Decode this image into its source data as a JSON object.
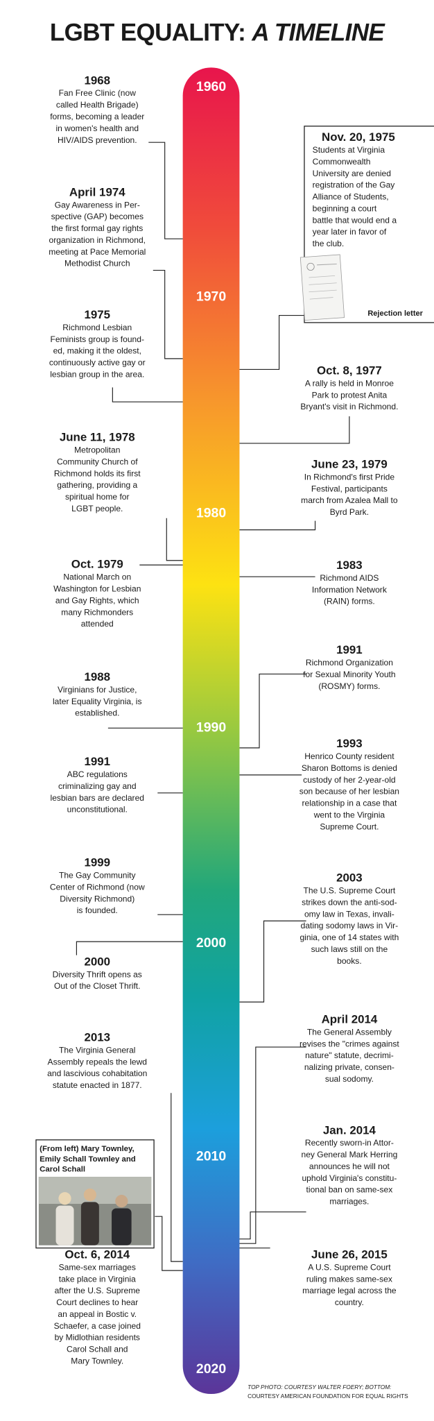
{
  "title": {
    "main": "LGBT EQUALITY:",
    "italic": "A TIMELINE"
  },
  "decades": [
    "1960",
    "1970",
    "1980",
    "1990",
    "2000",
    "2010",
    "2020"
  ],
  "left_events": [
    {
      "date": "1968",
      "lines": [
        "Fan Free Clinic (now",
        "called Health Brigade)",
        "forms, becoming a leader",
        "in women's health and",
        "HIV/AIDS prevention."
      ]
    },
    {
      "date": "April 1974",
      "lines": [
        "Gay Awareness in Per-",
        "spective (GAP) becomes",
        "the first formal gay rights",
        "organization in Richmond,",
        "meeting at Pace Memorial",
        "Methodist Church"
      ]
    },
    {
      "date": "1975",
      "lines": [
        "Richmond Lesbian",
        "Feminists group is found-",
        "ed, making it the oldest,",
        "continuously active gay or",
        "lesbian group in the area."
      ]
    },
    {
      "date": "June 11, 1978",
      "lines": [
        "Metropolitan",
        "Community Church of",
        "Richmond holds its first",
        "gathering, providing a",
        "spiritual home for",
        "LGBT people."
      ]
    },
    {
      "date": "Oct. 1979",
      "lines": [
        "National March on",
        "Washington for Lesbian",
        "and Gay Rights, which",
        "many Richmonders",
        "attended"
      ]
    },
    {
      "date": "1988",
      "lines": [
        "Virginians for Justice,",
        "later Equality Virginia, is",
        "established."
      ]
    },
    {
      "date": "1991",
      "lines": [
        "ABC regulations",
        "criminalizing gay and",
        "lesbian bars are declared",
        "unconstitutional."
      ]
    },
    {
      "date": "1999",
      "lines": [
        "The Gay Community",
        "Center of Richmond (now",
        "Diversity Richmond)",
        "is founded."
      ]
    },
    {
      "date": "2000",
      "lines": [
        "Diversity Thrift opens as",
        "Out of the Closet Thrift."
      ]
    },
    {
      "date": "2013",
      "lines": [
        "The Virginia General",
        "Assembly repeals the lewd",
        "and lascivious cohabitation",
        "statute enacted in 1877."
      ]
    },
    {
      "date": "Oct. 6, 2014",
      "lines": [
        "Same-sex marriages",
        "take place in Virginia",
        "after the U.S. Supreme",
        "Court declines to hear",
        "an appeal in Bostic v.",
        "Schaefer, a case joined",
        "by Midlothian residents",
        "Carol Schall and",
        "Mary Townley."
      ]
    }
  ],
  "right_events": [
    {
      "date": "Nov. 20, 1975",
      "lines": [
        "Students at Virginia",
        "Commonwealth",
        "University are denied",
        "registration of the Gay",
        "Alliance of Students,",
        "beginning a court",
        "battle that would end a",
        "year later in favor of",
        "the club."
      ]
    },
    {
      "date": "Oct. 8, 1977",
      "lines": [
        "A rally is held in Monroe",
        "Park to protest Anita",
        "Bryant's visit in Richmond."
      ]
    },
    {
      "date": "June 23, 1979",
      "lines": [
        "In Richmond's first Pride",
        "Festival, participants",
        "march from Azalea Mall to",
        "Byrd Park."
      ]
    },
    {
      "date": "1983",
      "lines": [
        "Richmond AIDS",
        "Information Network",
        "(RAIN) forms."
      ]
    },
    {
      "date": "1991",
      "lines": [
        "Richmond Organization",
        "for Sexual Minority Youth",
        "(ROSMY) forms."
      ]
    },
    {
      "date": "1993",
      "lines": [
        "Henrico County resident",
        "Sharon Bottoms is denied",
        "custody of her 2-year-old",
        "son because of her lesbian",
        "relationship in a case that",
        "went to the Virginia",
        "Supreme Court."
      ]
    },
    {
      "date": "2003",
      "lines": [
        "The U.S. Supreme Court",
        "strikes down the anti-sod-",
        "omy law in Texas, invali-",
        "dating sodomy laws in Vir-",
        "ginia, one of 14 states with",
        "such laws still on the",
        "books."
      ]
    },
    {
      "date": "April 2014",
      "lines": [
        "The General Assembly",
        "revises the \"crimes against",
        "nature\" statute, decrimi-",
        "nalizing private, consen-",
        "sual sodomy."
      ]
    },
    {
      "date": "Jan. 2014",
      "lines": [
        "Recently sworn-in Attor-",
        "ney General Mark Herring",
        "announces he will not",
        "uphold Virginia's constitu-",
        "tional ban on same-sex",
        "marriages."
      ]
    },
    {
      "date": "June 26, 2015",
      "lines": [
        "A U.S. Supreme Court",
        "ruling makes same-sex",
        "marriage legal across the",
        "country."
      ]
    }
  ],
  "letter_caption": "Rejection letter",
  "photo_caption": [
    "(From left) Mary Townley,",
    "Emily Schall Townley and",
    "Carol Schall"
  ],
  "credits": [
    "TOP PHOTO: COURTESY WALTER FOERY; BOTTOM:",
    "COURTESY AMERICAN FOUNDATION FOR EQUAL RIGHTS"
  ]
}
